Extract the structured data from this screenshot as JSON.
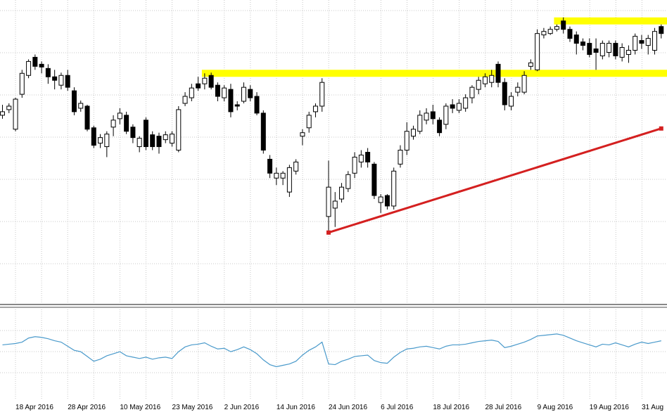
{
  "chart_data": [
    {
      "type": "candlestick",
      "categories": [
        null,
        null,
        "18 Apr 2016",
        null,
        null,
        null,
        null,
        null,
        null,
        null,
        "28 Apr 2016",
        null,
        null,
        null,
        null,
        null,
        null,
        null,
        "10 May 2016",
        null,
        null,
        null,
        null,
        null,
        null,
        null,
        "23 May 2016",
        null,
        null,
        null,
        null,
        null,
        null,
        null,
        "2 Jun 2016",
        null,
        null,
        null,
        null,
        null,
        null,
        null,
        "14 Jun 2016",
        null,
        null,
        null,
        null,
        null,
        null,
        null,
        "24 Jun 2016",
        null,
        null,
        null,
        null,
        null,
        null,
        null,
        "6 Jul 2016",
        null,
        null,
        null,
        null,
        null,
        null,
        null,
        "18 Jul 2016",
        null,
        null,
        null,
        null,
        null,
        null,
        null,
        "28 Jul 2016",
        null,
        null,
        null,
        null,
        null,
        null,
        null,
        "9 Aug 2016",
        null,
        null,
        null,
        null,
        null,
        null,
        null,
        "19 Aug 2016",
        null,
        null,
        null,
        null,
        null,
        null,
        null,
        "31 Aug",
        null,
        null,
        null
      ],
      "open": [
        270,
        278,
        250,
        300,
        327,
        353,
        343,
        337,
        325,
        313,
        327,
        305,
        280,
        283,
        252,
        230,
        225,
        253,
        265,
        270,
        253,
        225,
        263,
        242,
        240,
        235,
        230,
        220,
        287,
        295,
        315,
        315,
        327,
        313,
        295,
        307,
        285,
        290,
        307,
        297,
        273,
        207,
        180,
        180,
        160,
        190,
        240,
        252,
        275,
        283,
        125,
        137,
        150,
        165,
        187,
        203,
        217,
        200,
        145,
        155,
        140,
        200,
        220,
        240,
        247,
        263,
        275,
        263,
        257,
        285,
        277,
        280,
        295,
        307,
        315,
        317,
        343,
        317,
        283,
        303,
        303,
        340,
        335,
        385,
        387,
        393,
        405,
        393,
        385,
        375,
        373,
        365,
        355,
        360,
        373,
        353,
        357,
        363,
        377,
        370,
        363,
        397
      ],
      "high": [
        285,
        287,
        295,
        335,
        350,
        357,
        347,
        343,
        335,
        331,
        335,
        310,
        291,
        285,
        255,
        243,
        247,
        270,
        280,
        275,
        257,
        240,
        267,
        247,
        245,
        247,
        247,
        283,
        303,
        315,
        325,
        330,
        331,
        317,
        313,
        315,
        290,
        317,
        313,
        303,
        277,
        213,
        195,
        190,
        199,
        207,
        250,
        275,
        287,
        323,
        205,
        160,
        173,
        190,
        217,
        220,
        223,
        203,
        157,
        157,
        195,
        227,
        260,
        255,
        277,
        280,
        285,
        267,
        287,
        293,
        293,
        300,
        313,
        325,
        330,
        335,
        347,
        323,
        303,
        317,
        333,
        350,
        393,
        395,
        397,
        400,
        410,
        397,
        390,
        380,
        380,
        380,
        377,
        377,
        377,
        373,
        370,
        387,
        385,
        385,
        395,
        400
      ],
      "low": [
        265,
        273,
        247,
        295,
        323,
        335,
        330,
        315,
        307,
        307,
        305,
        270,
        275,
        247,
        223,
        223,
        210,
        240,
        257,
        243,
        230,
        217,
        220,
        220,
        215,
        230,
        225,
        217,
        283,
        290,
        305,
        307,
        307,
        290,
        290,
        267,
        277,
        287,
        290,
        270,
        215,
        180,
        170,
        170,
        153,
        185,
        227,
        245,
        267,
        275,
        105,
        110,
        145,
        160,
        180,
        195,
        195,
        150,
        130,
        135,
        135,
        195,
        213,
        235,
        243,
        257,
        257,
        240,
        250,
        273,
        273,
        275,
        287,
        300,
        310,
        310,
        310,
        277,
        277,
        297,
        300,
        335,
        333,
        380,
        385,
        390,
        387,
        375,
        357,
        363,
        353,
        335,
        350,
        353,
        350,
        347,
        345,
        357,
        365,
        357,
        357,
        380
      ],
      "close": [
        275,
        283,
        293,
        330,
        347,
        340,
        339,
        325,
        320,
        327,
        310,
        275,
        287,
        250,
        227,
        238,
        243,
        263,
        273,
        247,
        238,
        237,
        225,
        225,
        225,
        242,
        243,
        278,
        297,
        309,
        309,
        323,
        310,
        297,
        309,
        275,
        283,
        310,
        295,
        273,
        220,
        187,
        187,
        187,
        195,
        203,
        245,
        270,
        283,
        317,
        167,
        147,
        167,
        185,
        210,
        213,
        203,
        155,
        153,
        140,
        190,
        220,
        247,
        250,
        270,
        273,
        265,
        245,
        283,
        280,
        287,
        295,
        310,
        320,
        325,
        327,
        317,
        285,
        297,
        310,
        327,
        345,
        387,
        390,
        393,
        397,
        393,
        380,
        373,
        370,
        357,
        360,
        373,
        373,
        355,
        367,
        363,
        383,
        373,
        380,
        390,
        387
      ],
      "ylim": [
        0,
        435
      ],
      "up_color": "#ffffff",
      "down_color": "#000000",
      "hlines": [
        {
          "value": 330,
          "start": 31,
          "color": "#ffff00"
        },
        {
          "value": 405,
          "start": 85,
          "color": "#ffff00"
        }
      ],
      "trendline": {
        "x": [
          50,
          101
        ],
        "values": [
          102,
          251
        ],
        "color": "#d42020"
      },
      "grid": true
    },
    {
      "type": "line",
      "values": [
        80,
        81,
        82,
        84,
        90,
        92,
        91,
        89,
        86,
        84,
        78,
        72,
        70,
        63,
        56,
        59,
        64,
        67,
        70,
        64,
        62,
        60,
        62,
        59,
        61,
        62,
        60,
        70,
        77,
        80,
        81,
        83,
        78,
        74,
        75,
        70,
        73,
        77,
        73,
        67,
        58,
        51,
        48,
        50,
        52,
        56,
        65,
        72,
        77,
        84,
        52,
        51,
        56,
        59,
        63,
        64,
        65,
        57,
        54,
        53,
        62,
        69,
        74,
        75,
        77,
        78,
        76,
        74,
        78,
        80,
        80,
        81,
        83,
        85,
        86,
        87,
        85,
        76,
        78,
        81,
        84,
        88,
        93,
        94,
        95,
        96,
        94,
        90,
        86,
        83,
        80,
        77,
        81,
        80,
        83,
        80,
        77,
        81,
        84,
        82,
        84,
        86
      ],
      "ylim": [
        0,
        132
      ],
      "color": "#4a9acb"
    }
  ]
}
